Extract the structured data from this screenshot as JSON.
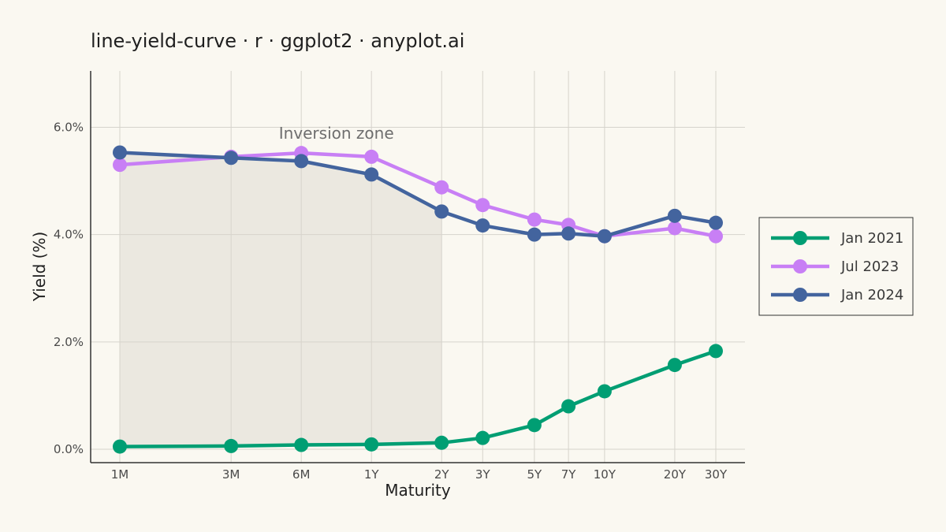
{
  "chart_data": {
    "type": "line",
    "title": "line-yield-curve · r · ggplot2 · anyplot.ai",
    "xlabel": "Maturity",
    "ylabel": "Yield (%)",
    "categories": [
      "1M",
      "3M",
      "6M",
      "1Y",
      "2Y",
      "3Y",
      "5Y",
      "7Y",
      "10Y",
      "20Y",
      "30Y"
    ],
    "maturity_years": [
      0.0833,
      0.25,
      0.5,
      1,
      2,
      3,
      5,
      7,
      10,
      20,
      30
    ],
    "ylim": [
      -0.25,
      7.05
    ],
    "yticks": [
      0,
      2,
      4,
      6
    ],
    "ytick_labels": [
      "0.0%",
      "2.0%",
      "4.0%",
      "6.0%"
    ],
    "grid": true,
    "legend_position": "right",
    "annotation": {
      "label": "Inversion zone",
      "x_start": "1M",
      "x_end": "2Y"
    },
    "series": [
      {
        "name": "Jan 2021",
        "color": "#009e73",
        "values": [
          0.05,
          0.06,
          0.08,
          0.09,
          0.12,
          0.21,
          0.45,
          0.8,
          1.08,
          1.57,
          1.83
        ]
      },
      {
        "name": "Jul 2023",
        "color": "#c87ff5",
        "values": [
          5.3,
          5.45,
          5.52,
          5.45,
          4.88,
          4.55,
          4.28,
          4.18,
          3.97,
          4.12,
          3.97
        ]
      },
      {
        "name": "Jan 2024",
        "color": "#43649e",
        "values": [
          5.53,
          5.43,
          5.37,
          5.12,
          4.43,
          4.17,
          4.0,
          4.02,
          3.97,
          4.35,
          4.22
        ]
      }
    ]
  }
}
